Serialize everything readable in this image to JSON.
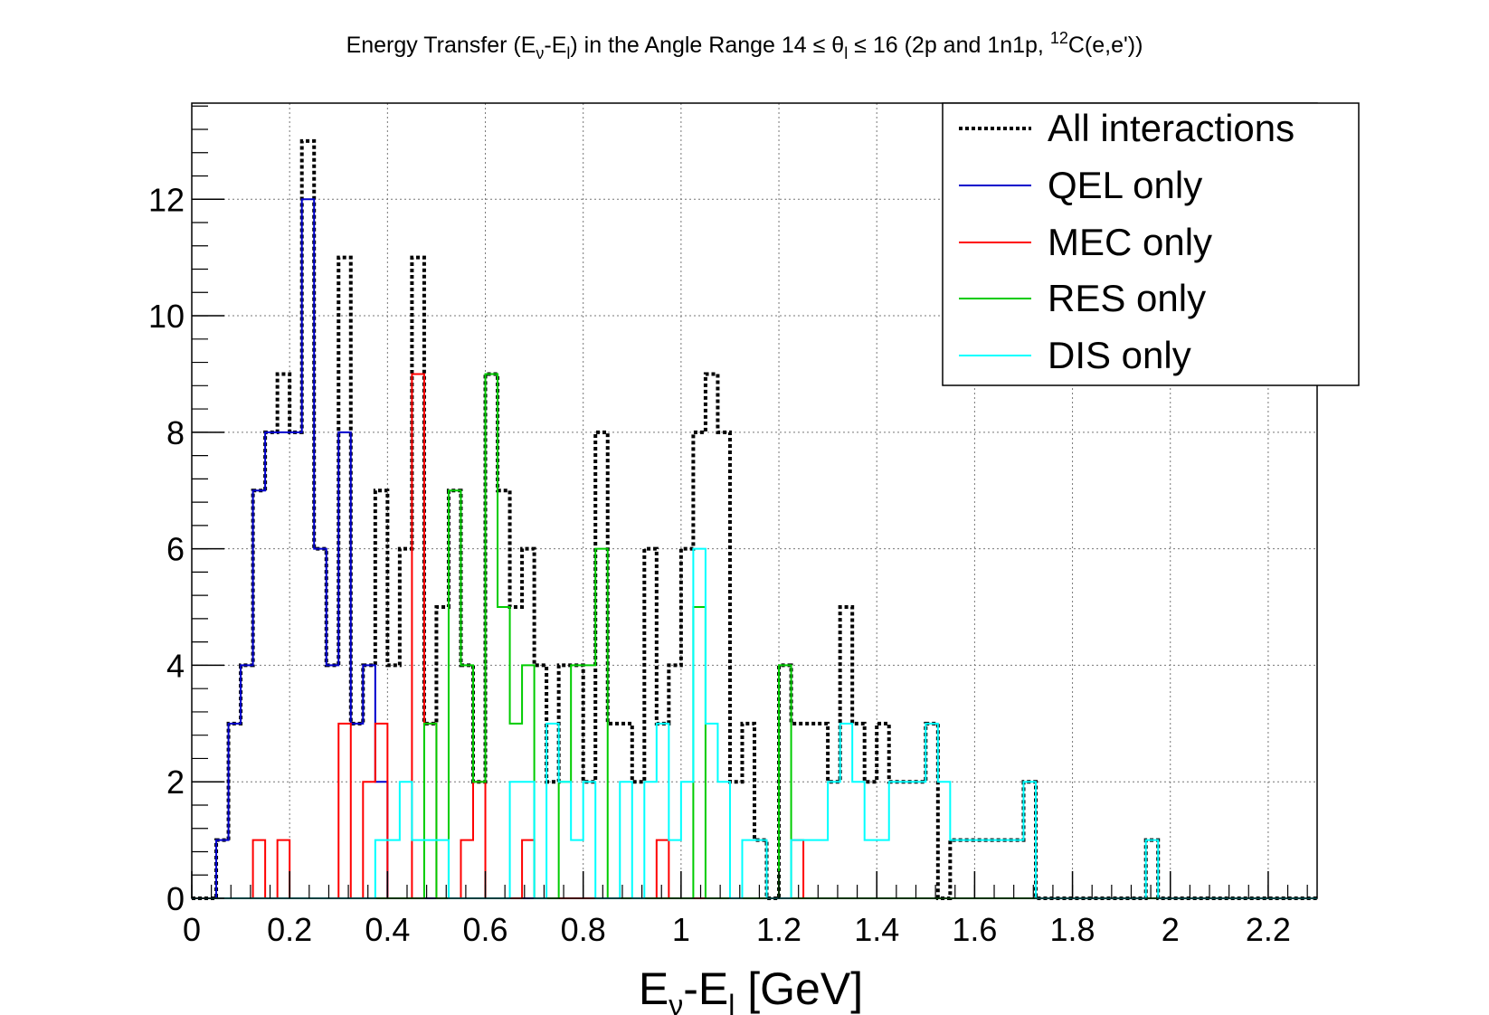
{
  "chart_data": {
    "type": "histogram-step",
    "title": {
      "prefix": "Energy Transfer (E",
      "sub1": "ν",
      "mid1": "-E",
      "sub2": "l",
      "mid2": ") in the Angle Range 14 ≤ θ",
      "sub3": "l",
      "mid3": " ≤ 16 (2p and 1n1p, ",
      "sup1": "12",
      "suffix": "C(e,e'))"
    },
    "xlabel": {
      "main": "E",
      "sub1": "ν",
      "mid": "-E",
      "sub2": "l",
      "suffix": " [GeV]"
    },
    "ylabel": "",
    "xlim": [
      0,
      2.3
    ],
    "ylim": [
      0,
      13.65
    ],
    "grid": true,
    "bin_width": 0.025,
    "x_ticks": [
      0,
      0.2,
      0.4,
      0.6,
      0.8,
      1,
      1.2,
      1.4,
      1.6,
      1.8,
      2,
      2.2
    ],
    "x_tick_labels": [
      "0",
      "0.2",
      "0.4",
      "0.6",
      "0.8",
      "1",
      "1.2",
      "1.4",
      "1.6",
      "1.8",
      "2",
      "2.2"
    ],
    "y_ticks": [
      0,
      2,
      4,
      6,
      8,
      10,
      12
    ],
    "y_tick_labels": [
      "0",
      "2",
      "4",
      "6",
      "8",
      "10",
      "12"
    ],
    "legend_position": "top-right",
    "series": [
      {
        "name": "All interactions",
        "color": "#000000",
        "dashed": true,
        "values": [
          0,
          0,
          1,
          3,
          4,
          7,
          8,
          9,
          8,
          13,
          6,
          4,
          11,
          3,
          4,
          7,
          4,
          6,
          11,
          3,
          5,
          7,
          4,
          2,
          9,
          7,
          5,
          6,
          4,
          2,
          4,
          4,
          2,
          8,
          3,
          3,
          2,
          6,
          3,
          4,
          6,
          8,
          9,
          8,
          2,
          3,
          1,
          0,
          4,
          3,
          3,
          3,
          2,
          5,
          3,
          2,
          3,
          2,
          2,
          2,
          3,
          0,
          1,
          1,
          1,
          1,
          1,
          1,
          2,
          0,
          0,
          0,
          0,
          0,
          0,
          0,
          0,
          0,
          1,
          0,
          0,
          0,
          0,
          0,
          0,
          0,
          0,
          0,
          0,
          0,
          0,
          0
        ]
      },
      {
        "name": "QEL only",
        "color": "#0000cc",
        "dashed": false,
        "values": [
          0,
          0,
          1,
          3,
          4,
          7,
          8,
          8,
          8,
          12,
          6,
          4,
          8,
          3,
          4,
          2,
          0,
          0,
          0,
          0,
          0,
          0,
          0,
          0,
          0,
          0,
          0,
          0,
          0,
          0,
          0,
          0,
          0,
          0,
          0,
          0,
          0,
          0,
          0,
          0,
          0,
          0,
          0,
          0,
          0,
          0,
          0,
          0,
          0,
          0,
          0,
          0,
          0,
          0,
          0,
          0,
          0,
          0,
          0,
          0,
          0,
          0,
          0,
          0,
          0,
          0,
          0,
          0,
          0,
          0,
          0,
          0,
          0,
          0,
          0,
          0,
          0,
          0,
          0,
          0,
          0,
          0,
          0,
          0,
          0,
          0,
          0,
          0,
          0,
          0,
          0,
          0
        ]
      },
      {
        "name": "MEC only",
        "color": "#ff0000",
        "dashed": false,
        "values": [
          0,
          0,
          0,
          0,
          0,
          1,
          0,
          1,
          0,
          0,
          0,
          0,
          3,
          0,
          2,
          3,
          0,
          0,
          9,
          3,
          0,
          0,
          1,
          2,
          0,
          0,
          0,
          1,
          0,
          0,
          0,
          0,
          0,
          0,
          0,
          0,
          0,
          0,
          1,
          0,
          0,
          0,
          0,
          0,
          0,
          0,
          0,
          0,
          0,
          1,
          0,
          0,
          0,
          0,
          0,
          0,
          0,
          0,
          0,
          0,
          0,
          0,
          0,
          0,
          0,
          0,
          0,
          0,
          0,
          0,
          0,
          0,
          0,
          0,
          0,
          0,
          0,
          0,
          0,
          0,
          0,
          0,
          0,
          0,
          0,
          0,
          0,
          0,
          0,
          0,
          0,
          0
        ]
      },
      {
        "name": "RES only",
        "color": "#00cc00",
        "dashed": false,
        "values": [
          0,
          0,
          0,
          0,
          0,
          0,
          0,
          0,
          0,
          0,
          0,
          0,
          0,
          0,
          0,
          0,
          0,
          0,
          0,
          3,
          0,
          7,
          4,
          2,
          9,
          5,
          3,
          4,
          0,
          0,
          2,
          4,
          4,
          6,
          0,
          0,
          0,
          0,
          0,
          0,
          0,
          5,
          0,
          0,
          0,
          0,
          0,
          0,
          4,
          0,
          0,
          0,
          0,
          0,
          0,
          0,
          0,
          0,
          0,
          0,
          0,
          0,
          0,
          0,
          0,
          0,
          0,
          0,
          0,
          0,
          0,
          0,
          0,
          0,
          0,
          0,
          0,
          0,
          0,
          0,
          0,
          0,
          0,
          0,
          0,
          0,
          0,
          0,
          0,
          0,
          0,
          0
        ]
      },
      {
        "name": "DIS only",
        "color": "#00ffff",
        "dashed": false,
        "values": [
          0,
          0,
          0,
          0,
          0,
          0,
          0,
          0,
          0,
          0,
          0,
          0,
          0,
          0,
          0,
          1,
          1,
          2,
          1,
          1,
          1,
          0,
          0,
          0,
          0,
          0,
          2,
          2,
          0,
          3,
          2,
          1,
          2,
          0,
          0,
          2,
          0,
          2,
          3,
          1,
          2,
          6,
          3,
          2,
          0,
          1,
          1,
          0,
          0,
          1,
          1,
          1,
          2,
          3,
          2,
          1,
          1,
          2,
          2,
          2,
          3,
          2,
          1,
          1,
          1,
          1,
          1,
          1,
          2,
          0,
          0,
          0,
          0,
          0,
          0,
          0,
          0,
          0,
          1,
          0,
          0,
          0,
          0,
          0,
          0,
          0,
          0,
          0,
          0,
          0,
          0,
          0
        ]
      }
    ]
  }
}
